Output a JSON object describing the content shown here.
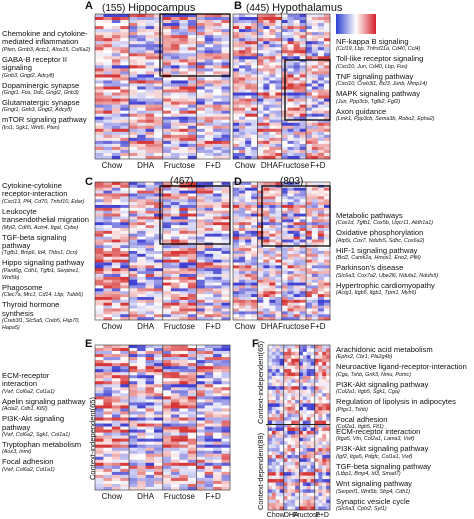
{
  "columns": [
    "Chow",
    "DHA",
    "Fructose",
    "F+D"
  ],
  "panels": [
    {
      "letter": "A",
      "count": "(155)",
      "title": "Hippocampus",
      "groups": [
        {
          "pathways": [
            {
              "name": "Chemokine and cytokine-mediated inflammation",
              "genes": "(Pten, Grnb3, Actc1, Alox15, Col6a2)"
            },
            {
              "name": "GABA-B receptor II signaling",
              "genes": "(Gnb3, Gngt2, Adcy8)"
            },
            {
              "name": "Dopaminergic synapse",
              "genes": "(Gngt1, Fos, Ddc, Gngt2, Gnb3)"
            },
            {
              "name": "Glutamatergic synapse",
              "genes": "(Gngt1, Gnb3, Gngt2, Adcy8)"
            },
            {
              "name": "mTOR signaling pathway",
              "genes": "(Irs1, Sgk1, Wnt6, Pten)"
            }
          ]
        }
      ]
    },
    {
      "letter": "B",
      "count": "(445)",
      "title": "Hypothalamus",
      "groups": [
        {
          "pathways": [
            {
              "name": "NF-kappa B signaling",
              "genes": "(Ccl19, Lbp, Tnfrsf11a, Cd40, Ccl4)"
            },
            {
              "name": "Toll-like receptor signaling",
              "genes": "(Cxcl10, Jun, Cd40, Lbp, Fos)"
            },
            {
              "name": "TNF signaling pathway",
              "genes": "(Cxcl10, Creb3l1, Bcl3, Junb, Mmp14)"
            },
            {
              "name": "MAPK signaling pathway",
              "genes": "(Jun, Ppp3cb, Tgfb2, Fgf2)"
            },
            {
              "name": "Axon guidance",
              "genes": "(Lmk1, Ppp3cb, Sema3b, Robo2, Epha2)"
            }
          ]
        }
      ]
    },
    {
      "letter": "C",
      "count": "(467)",
      "groups": [
        {
          "pathways": [
            {
              "name": "Cytokine-cytokine receptor-interaction",
              "genes": "(Cxcl13, Pf4, Cd70, Tnfsf10, Edar)"
            },
            {
              "name": "Leukocyte transendothelial migration",
              "genes": "(Myl2, Cdh5, Actn4, Itgal, Cybe)"
            },
            {
              "name": "TGF-beta signaling pathway",
              "genes": "(Tgfb1, Bmp6, Id4, Thbs1, Dcn)"
            },
            {
              "name": "Hippo signaling pathway",
              "genes": "(Pard6g, Cdh1, Tgfb1, Serpine1, Wnt5b)"
            },
            {
              "name": "Phagosome",
              "genes": "(Clec7a, Mrc1, Cd14, Lbp, Tubb6)"
            },
            {
              "name": "Thyroid hormone synthesis",
              "genes": "(Creb3l1, Slc5a5, Creb5, Hsp70, Hapa5)"
            }
          ]
        }
      ]
    },
    {
      "letter": "D",
      "count": "(803)",
      "groups": [
        {
          "pathways": [
            {
              "name": "Metabolic pathways",
              "genes": "(Cox1d, Tgfb1, Cox5b, Uqcr11, Aldh1a1)"
            },
            {
              "name": "Oxidative phosphorylation",
              "genes": "(Atp5i, Cox7, Ndufs5, Sdhc, Cox6a2)"
            },
            {
              "name": "HIF-1 signaling pathway",
              "genes": "(Bcl2, Camk2a, Hmox1, Eno2, Pfkl)"
            },
            {
              "name": "Parkinson's disease",
              "genes": "(Slc6a3, Cox7a2, Ube2l6, Ndufa1, Ndufs5)"
            },
            {
              "name": "Hypertrophic cardiomyopathy",
              "genes": "(Actg1, Itgb5, Itgb1, Tpm1, Myh6)"
            }
          ]
        }
      ]
    },
    {
      "letter": "E",
      "groups": [
        {
          "side": "Context-independent(65)",
          "pathways": [
            {
              "name": "ECM-receptor interaction",
              "genes": "(Vwf, Col6a2, Col1a1)"
            },
            {
              "name": "Apelin signaling pathway",
              "genes": "(Acta2, Cdh1, Klf2)"
            },
            {
              "name": "PI3K-Akt signaling pathway",
              "genes": "(Vwf, Col6a2, Sgk1, Col1a1)"
            },
            {
              "name": "Tryptophan metabolism",
              "genes": "(Aox3, Inmt)"
            },
            {
              "name": "Focal adhesion",
              "genes": "(Vwf, Col6a2, Col1a1)"
            }
          ]
        }
      ]
    },
    {
      "letter": "F",
      "groups": [
        {
          "side": "Context-independent(65)",
          "pathways": [
            {
              "name": "Arachidonic acid metabolism",
              "genes": "(Ephx2, Cbr1, Pla2g4b)"
            },
            {
              "name": "Neuroactive ligand-receptor-interaction",
              "genes": "(Cga, Tshb, Grik3, Nmu, Pomc)"
            },
            {
              "name": "PI3K-Akt signaling pathway",
              "genes": "(Col2a1, Itgb5, Sgk1, Cga)"
            },
            {
              "name": "Regulation of lipolysis in adipocytes",
              "genes": "(Ptgs1, Tshb)"
            },
            {
              "name": "Focal adhesion",
              "genes": "(Col2a1, Itgb5, Flt1)"
            }
          ]
        },
        {
          "side": "Context-dependent(89)",
          "pathways": [
            {
              "name": "ECM-receptor interaction",
              "genes": "(Itga5, Vtn, Col2a1, Lama3, Vwf)"
            },
            {
              "name": "PI3K-Akt signaling pathway",
              "genes": "(Igf2, Itga5, Pdgfc, Col1a1, Vwf)"
            },
            {
              "name": "TGF-beta signaling pathway",
              "genes": "(Ltbp1, Bmp4, Id3, Smad7)"
            },
            {
              "name": "Wnt signaling pathway",
              "genes": "(Serpinf1, Wnt5b, Sfrp4, Cdh1)"
            },
            {
              "name": "Synaptic vesicle cycle",
              "genes": "(Slc6a3, Cplx2, Syt1)"
            }
          ]
        }
      ]
    }
  ]
}
